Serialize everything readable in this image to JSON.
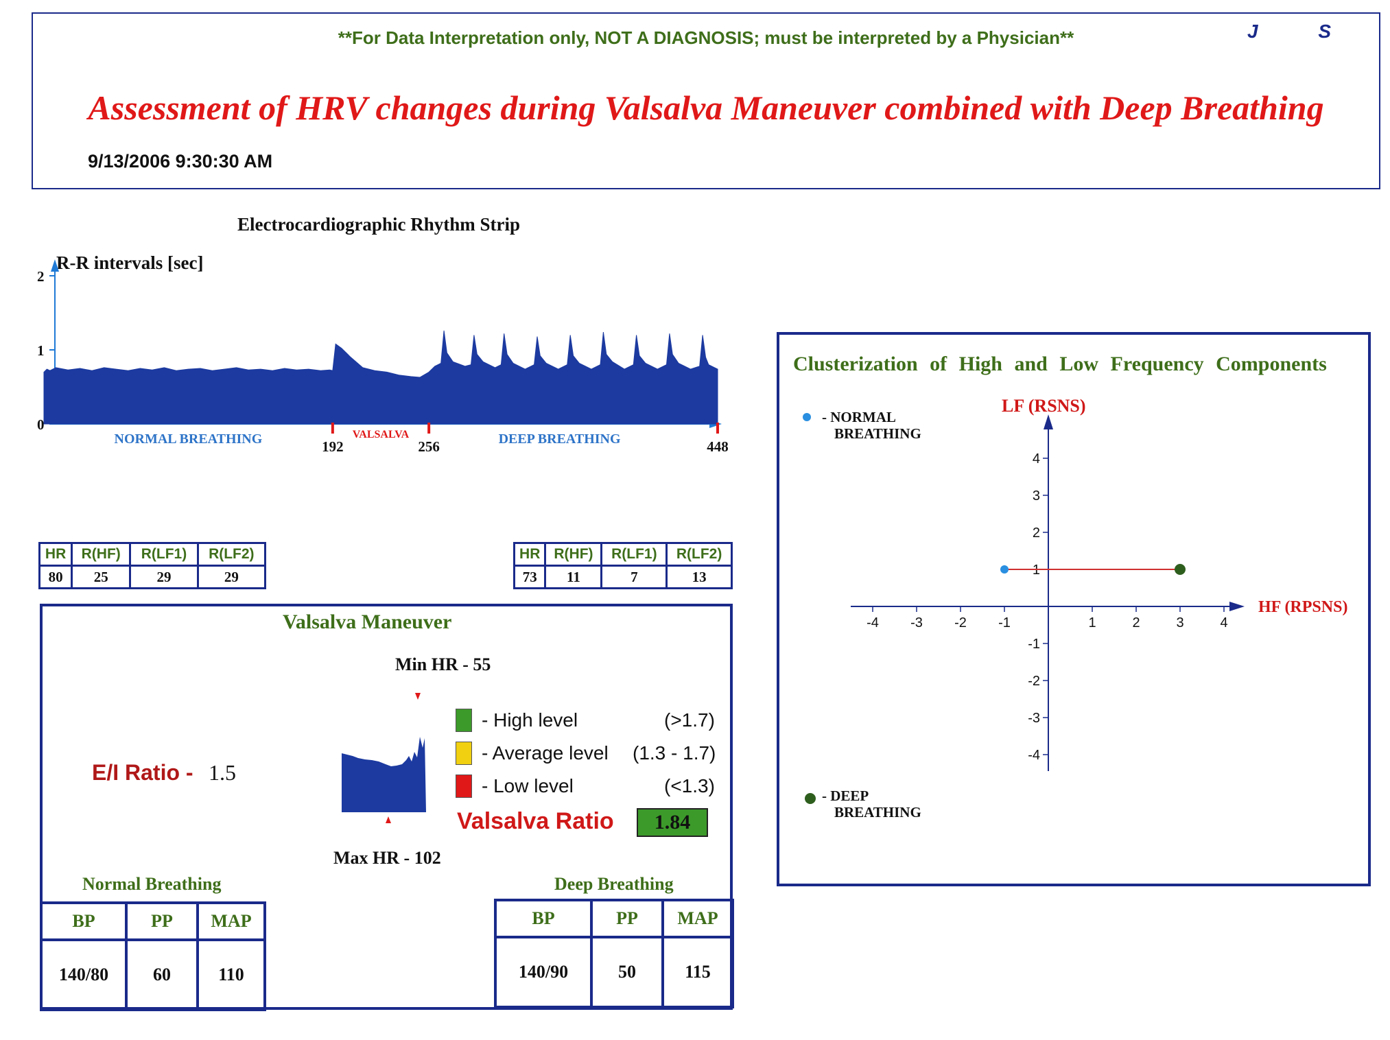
{
  "header": {
    "disclaimer": "**For Data Interpretation only, NOT A DIAGNOSIS; must be interpreted by a Physician**",
    "initials": "J S",
    "title": "Assessment of HRV changes during Valsalva Maneuver combined with Deep Breathing",
    "timestamp": "9/13/2006 9:30:30 AM"
  },
  "chart_data": [
    {
      "type": "area",
      "title": "Electrocardiographic Rhythm Strip",
      "ylabel": "R-R intervals [sec]",
      "ylim": [
        0,
        2
      ],
      "yticks": [
        0,
        1,
        2
      ],
      "xlim": [
        0,
        448
      ],
      "xticks": [
        192,
        256,
        448
      ],
      "segments": [
        {
          "label": "NORMAL BREATHING",
          "from": 0,
          "to": 192
        },
        {
          "label": "VALSALVA",
          "from": 192,
          "to": 256
        },
        {
          "label": "DEEP BREATHING",
          "from": 256,
          "to": 448
        }
      ],
      "x": [
        0,
        2,
        4,
        8,
        16,
        24,
        32,
        40,
        48,
        56,
        64,
        72,
        80,
        88,
        96,
        104,
        112,
        120,
        128,
        136,
        144,
        152,
        160,
        168,
        176,
        184,
        190,
        192,
        194,
        198,
        204,
        212,
        220,
        228,
        236,
        244,
        250,
        256,
        260,
        264,
        266,
        268,
        272,
        280,
        284,
        286,
        288,
        292,
        300,
        304,
        306,
        308,
        312,
        320,
        326,
        328,
        330,
        334,
        342,
        348,
        350,
        352,
        356,
        364,
        370,
        372,
        374,
        378,
        386,
        392,
        394,
        396,
        400,
        408,
        414,
        416,
        418,
        422,
        430,
        436,
        438,
        440,
        442,
        446,
        448
      ],
      "values": [
        0.7,
        0.74,
        0.72,
        0.76,
        0.73,
        0.75,
        0.72,
        0.76,
        0.74,
        0.72,
        0.75,
        0.73,
        0.76,
        0.72,
        0.74,
        0.75,
        0.72,
        0.74,
        0.76,
        0.73,
        0.74,
        0.72,
        0.75,
        0.73,
        0.74,
        0.72,
        0.73,
        0.72,
        1.08,
        1.02,
        0.9,
        0.76,
        0.72,
        0.7,
        0.66,
        0.64,
        0.63,
        0.7,
        0.78,
        0.82,
        1.26,
        0.96,
        0.84,
        0.78,
        0.8,
        1.2,
        0.94,
        0.84,
        0.76,
        0.8,
        1.22,
        0.94,
        0.82,
        0.74,
        0.8,
        1.18,
        0.92,
        0.82,
        0.74,
        0.8,
        1.2,
        0.92,
        0.82,
        0.74,
        0.8,
        1.24,
        0.94,
        0.84,
        0.74,
        0.8,
        1.2,
        0.92,
        0.82,
        0.74,
        0.8,
        1.22,
        0.94,
        0.82,
        0.74,
        0.78,
        1.2,
        0.9,
        0.8,
        0.76,
        0.74
      ]
    },
    {
      "type": "scatter",
      "title": "Clusterization of High and Low Frequency Components",
      "xlabel_main": "HF",
      "xlabel_sub": "(RPSNS)",
      "ylabel_main": "LF",
      "ylabel_sub": "(RSNS)",
      "xlim": [
        -4,
        4
      ],
      "ylim": [
        -4,
        4
      ],
      "xticks": [
        -4,
        -3,
        -2,
        -1,
        1,
        2,
        3,
        4
      ],
      "yticks": [
        -4,
        -3,
        -2,
        -1,
        1,
        2,
        3,
        4
      ],
      "series": [
        {
          "name": "- NORMAL BREATHING",
          "color": "#2a8fe0",
          "x": [
            -1
          ],
          "y": [
            1
          ]
        },
        {
          "name": "- DEEP BREATHING",
          "color": "#2e5e1e",
          "x": [
            3
          ],
          "y": [
            1
          ]
        }
      ],
      "connector_color": "#d03030"
    }
  ],
  "strip": {
    "title": "Electrocardiographic Rhythm Strip",
    "ylabel": "R-R intervals [sec]",
    "ytick_labels": [
      "0",
      "1",
      "2"
    ],
    "xtick_labels": [
      "192",
      "256",
      "448"
    ],
    "seg_normal": "NORMAL BREATHING",
    "seg_valsalva": "VALSALVA",
    "seg_deep": "DEEP BREATHING"
  },
  "normal_table": {
    "headers": [
      "HR",
      "R(HF)",
      "R(LF1)",
      "R(LF2)"
    ],
    "values": [
      "80",
      "25",
      "29",
      "29"
    ]
  },
  "deep_table": {
    "headers": [
      "HR",
      "R(HF)",
      "R(LF1)",
      "R(LF2)"
    ],
    "values": [
      "73",
      "11",
      "7",
      "13"
    ]
  },
  "valsalva": {
    "title": "Valsalva Maneuver",
    "min_hr": "Min HR - 55",
    "max_hr": "Max HR - 102",
    "ei_label": "E/I Ratio -",
    "ei_value": "1.5",
    "legend": [
      {
        "label": "- High level",
        "range": "(>1.7)",
        "color": "#3c9a2a"
      },
      {
        "label": "- Average level",
        "range": "(1.3 - 1.7)",
        "color": "#f0d010"
      },
      {
        "label": "- Low level",
        "range": "(<1.3)",
        "color": "#e01818"
      }
    ],
    "ratio_label": "Valsalva Ratio",
    "ratio_value": "1.84",
    "ratio_color": "#3c9a2a"
  },
  "normal_bp": {
    "title": "Normal Breathing",
    "headers": [
      "BP",
      "PP",
      "MAP"
    ],
    "values": [
      "140/80",
      "60",
      "110"
    ]
  },
  "deep_bp": {
    "title": "Deep Breathing",
    "headers": [
      "BP",
      "PP",
      "MAP"
    ],
    "values": [
      "140/90",
      "50",
      "115"
    ]
  },
  "cluster": {
    "title": "Clusterization of High and Low Frequency Components",
    "legend_normal_1": "- NORMAL",
    "legend_normal_2": "BREATHING",
    "legend_deep_1": "- DEEP",
    "legend_deep_2": "BREATHING",
    "lf_main": "LF",
    "lf_sub": "(RSNS)",
    "hf_main": "HF",
    "hf_sub": "(RPSNS)"
  }
}
